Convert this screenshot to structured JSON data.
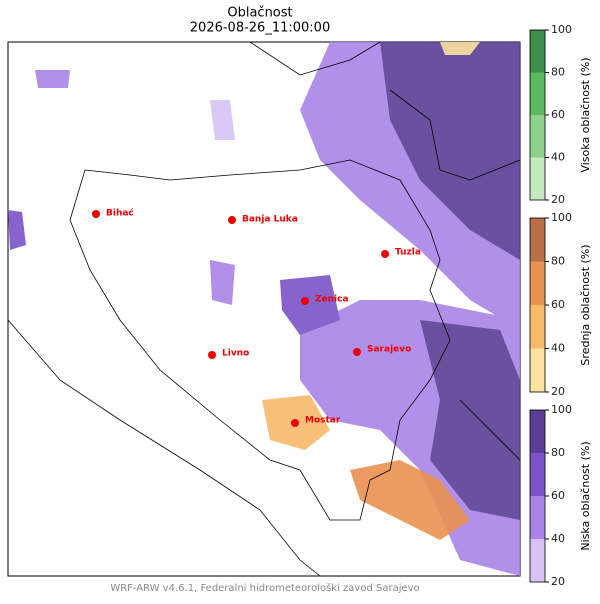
{
  "title": "Oblačnost",
  "subtitle": "2026-08-26_11:00:00",
  "cities": [
    "Bihać",
    "Banja Luka",
    "Tuzla",
    "Zenica",
    "Livno",
    "Sarajevo",
    "Mostar"
  ],
  "colorbars": [
    {
      "label": "Visoka oblačnost (%)",
      "lim": [
        20,
        100
      ],
      "ticks": [
        20,
        40,
        60,
        80,
        100
      ],
      "colors": [
        "#c7e9c0",
        "#8fd18a",
        "#5db862",
        "#3e8d4a"
      ]
    },
    {
      "label": "Srednja oblačnost (%)",
      "lim": [
        20,
        100
      ],
      "ticks": [
        20,
        40,
        60,
        80,
        100
      ],
      "colors": [
        "#fde3a0",
        "#f8b96a",
        "#e99150",
        "#b96f45"
      ]
    },
    {
      "label": "Niska oblačnost (%)",
      "lim": [
        20,
        100
      ],
      "ticks": [
        20,
        40,
        60,
        80,
        100
      ],
      "colors": [
        "#d6c2f5",
        "#a984e8",
        "#7a53c8",
        "#5a3f96"
      ]
    }
  ],
  "footer": "WRF-ARW v4.6.1, Federalni hidrometeorološki zavod Sarajevo"
}
